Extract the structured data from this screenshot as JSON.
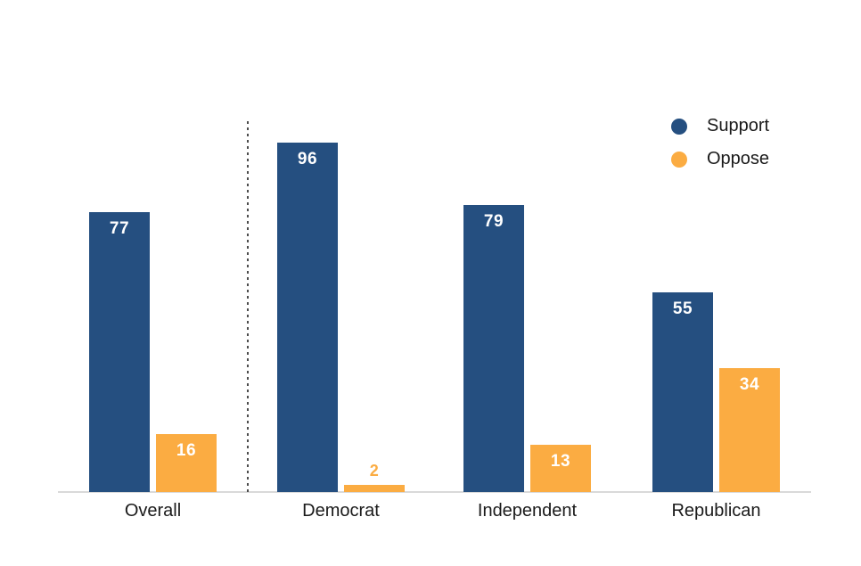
{
  "chart_data": {
    "type": "bar",
    "title": "",
    "xlabel": "",
    "ylabel": "",
    "categories": [
      "Overall",
      "Democrat",
      "Independent",
      "Republican"
    ],
    "series": [
      {
        "name": "Support",
        "color": "#254f80",
        "values": [
          77,
          96,
          79,
          55
        ]
      },
      {
        "name": "Oppose",
        "color": "#fbac42",
        "values": [
          16,
          2,
          13,
          34
        ]
      }
    ],
    "ylim": [
      0,
      100
    ],
    "grid": false,
    "axis_line_color": "#d9d9d9",
    "value_label_color_inside": "#ffffff",
    "legend_position": "top-right",
    "legend": [
      "Support",
      "Oppose"
    ],
    "separator_after_category": "Overall",
    "value_labels_shown": true
  }
}
